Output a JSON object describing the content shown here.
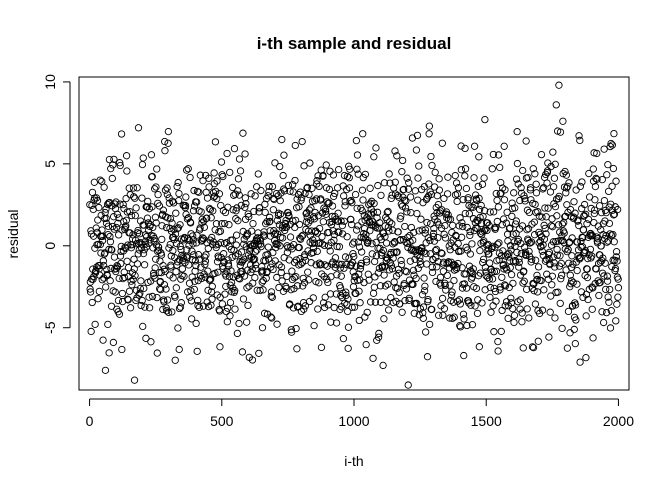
{
  "chart_data": {
    "type": "scatter",
    "title": "i-th sample and residual",
    "xlabel": "i-th",
    "ylabel": "residual",
    "xlim": [
      -40,
      2040
    ],
    "ylim": [
      -8.8,
      10.3
    ],
    "xticks": [
      0,
      500,
      1000,
      1500,
      2000
    ],
    "yticks": [
      -5,
      0,
      5,
      10
    ],
    "grid": false,
    "legend": "none",
    "marker": "open-circle",
    "n_points": 2000,
    "distribution": "approximately normal, mean 0, sd about 2.7",
    "notable_points": [
      {
        "x": 1775,
        "y": 9.8
      },
      {
        "x": 1765,
        "y": 8.6
      },
      {
        "x": 1790,
        "y": 7.6
      },
      {
        "x": 1495,
        "y": 7.7
      },
      {
        "x": 185,
        "y": 7.2
      },
      {
        "x": 1205,
        "y": -8.5
      },
      {
        "x": 170,
        "y": -8.2
      },
      {
        "x": 60,
        "y": -7.6
      },
      {
        "x": 1110,
        "y": -7.3
      },
      {
        "x": 1770,
        "y": 7.0
      },
      {
        "x": 1285,
        "y": 7.3
      },
      {
        "x": 1855,
        "y": -7.1
      }
    ]
  }
}
